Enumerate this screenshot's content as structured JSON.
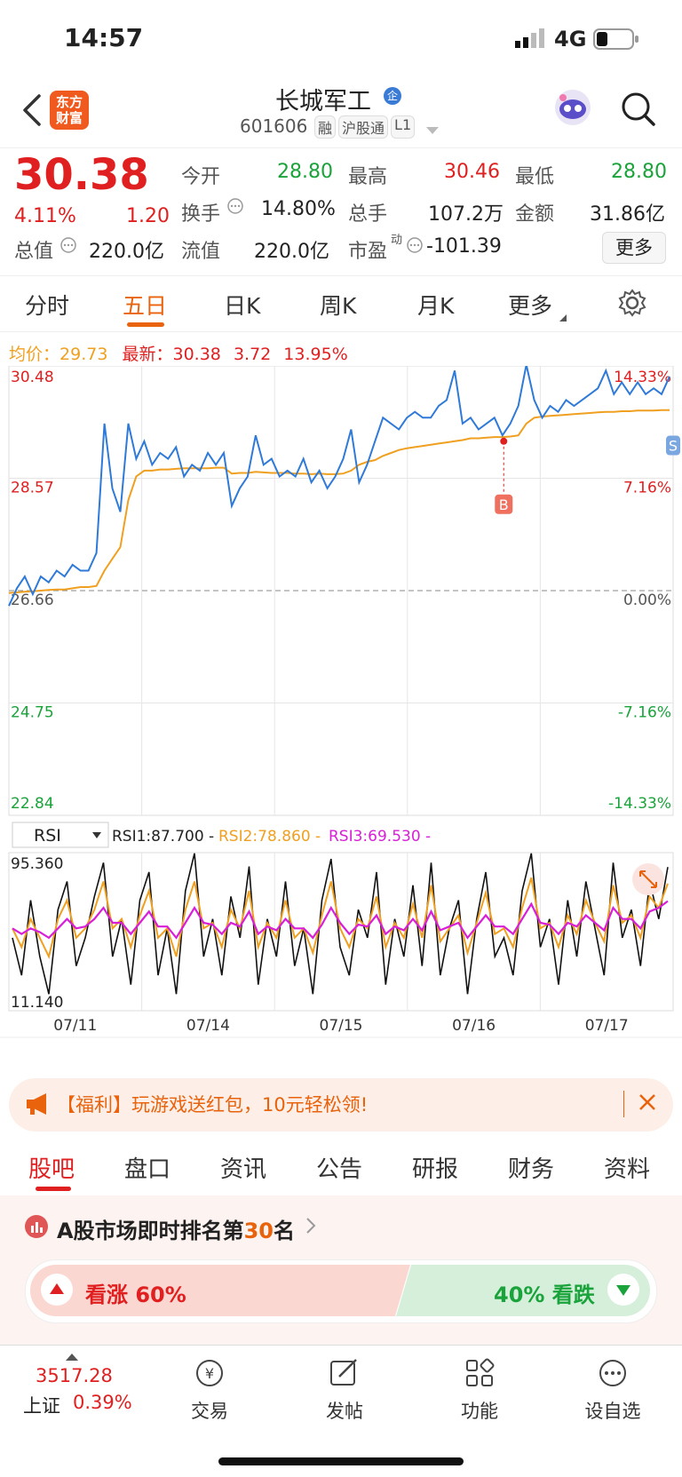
{
  "status": {
    "time": "14:57",
    "network": "4G"
  },
  "nav": {
    "back_icon": "chevron-left-icon",
    "logo_text": "东方\n财富",
    "title": "长城军工",
    "badge": "企",
    "code": "601606",
    "tags": [
      "融",
      "沪股通",
      "L1"
    ]
  },
  "quote": {
    "price": "30.38",
    "change_pct": "4.11%",
    "change": "1.20",
    "open_label": "今开",
    "open": "28.80",
    "high_label": "最高",
    "high": "30.46",
    "low_label": "最低",
    "low": "28.80",
    "turnover_label": "换手",
    "turnover": "14.80%",
    "volume_label": "总手",
    "volume": "107.2万",
    "amount_label": "金额",
    "amount": "31.86亿",
    "mktcap_label": "总值",
    "mktcap": "220.0亿",
    "float_label": "流值",
    "float": "220.0亿",
    "pe_label": "市盈",
    "pe_sup": "动",
    "pe": "-101.39",
    "more_label": "更多"
  },
  "tabs": [
    "分时",
    "五日",
    "日K",
    "周K",
    "月K",
    "更多"
  ],
  "tabs_active": "五日",
  "summary": {
    "avg_label": "均价：",
    "avg": "29.73",
    "latest_label": "最新：",
    "latest": "30.38",
    "chg": "3.72",
    "chg_pct": "13.95%"
  },
  "chart_data": {
    "type": "line",
    "left_axis": [
      "30.48",
      "28.57",
      "26.66",
      "24.75",
      "22.84"
    ],
    "right_axis": [
      "14.33%",
      "7.16%",
      "0.00%",
      "-7.16%",
      "-14.33%"
    ],
    "dates": [
      "07/11",
      "07/14",
      "07/15",
      "07/16",
      "07/17"
    ],
    "ylim": [
      22.84,
      30.48
    ],
    "base": 26.66,
    "price_series": [
      26.4,
      26.7,
      26.9,
      26.6,
      26.9,
      26.8,
      27.0,
      26.9,
      27.1,
      27.0,
      27.0,
      27.3,
      29.5,
      28.4,
      28.0,
      29.5,
      28.9,
      29.2,
      28.8,
      29.0,
      28.9,
      29.1,
      28.6,
      28.8,
      28.7,
      29.0,
      28.8,
      29.0,
      28.1,
      28.4,
      28.6,
      29.3,
      28.8,
      28.9,
      28.6,
      28.7,
      28.6,
      28.9,
      28.5,
      28.7,
      28.4,
      28.6,
      28.9,
      29.4,
      28.5,
      28.8,
      29.2,
      29.6,
      29.5,
      29.4,
      29.6,
      29.7,
      29.6,
      29.6,
      29.8,
      29.9,
      30.4,
      29.5,
      29.6,
      29.4,
      29.5,
      29.6,
      29.3,
      29.5,
      29.8,
      30.5,
      29.9,
      29.6,
      29.8,
      29.7,
      29.9,
      29.8,
      29.9,
      30.0,
      30.1,
      30.4,
      30.0,
      30.2,
      30.0,
      30.2,
      30.0,
      30.1,
      30.0,
      30.3
    ],
    "avg_series": [
      26.62,
      26.63,
      26.64,
      26.65,
      26.66,
      26.67,
      26.68,
      26.68,
      26.7,
      26.72,
      26.72,
      26.74,
      27.0,
      27.2,
      27.4,
      28.2,
      28.6,
      28.7,
      28.7,
      28.72,
      28.72,
      28.73,
      28.74,
      28.74,
      28.74,
      28.74,
      28.75,
      28.75,
      28.65,
      28.66,
      28.66,
      28.68,
      28.67,
      28.66,
      28.66,
      28.66,
      28.65,
      28.65,
      28.64,
      28.65,
      28.64,
      28.64,
      28.65,
      28.7,
      28.8,
      28.85,
      28.88,
      28.95,
      29.0,
      29.05,
      29.08,
      29.1,
      29.12,
      29.14,
      29.16,
      29.18,
      29.2,
      29.22,
      29.25,
      29.25,
      29.26,
      29.27,
      29.27,
      29.28,
      29.3,
      29.5,
      29.6,
      29.62,
      29.63,
      29.64,
      29.65,
      29.66,
      29.67,
      29.68,
      29.69,
      29.7,
      29.7,
      29.71,
      29.71,
      29.72,
      29.72,
      29.72,
      29.73,
      29.73
    ],
    "markers": [
      {
        "label": "B",
        "value": 29.2
      },
      {
        "label": "S",
        "value": 30.2
      }
    ],
    "legend_position": "top-left"
  },
  "rsi": {
    "selector": "RSI",
    "rsi1_label": "RSI1:87.700 -",
    "rsi2_label": "RSI2:78.860 -",
    "rsi3_label": "RSI3:69.530 -",
    "top_label": "95.360",
    "bottom_label": "11.140",
    "ylim": [
      11.14,
      95.36
    ],
    "rsi1": [
      50,
      30,
      70,
      40,
      20,
      65,
      80,
      35,
      50,
      72,
      90,
      40,
      60,
      25,
      70,
      85,
      30,
      55,
      20,
      75,
      95,
      40,
      60,
      30,
      72,
      50,
      88,
      25,
      60,
      40,
      80,
      35,
      55,
      20,
      70,
      92,
      45,
      30,
      65,
      50,
      85,
      25,
      60,
      40,
      78,
      35,
      90,
      30,
      55,
      70,
      20,
      60,
      85,
      40,
      50,
      30,
      75,
      95,
      45,
      60,
      25,
      70,
      40,
      80,
      55,
      30,
      90,
      50,
      65,
      35,
      80,
      60,
      87.7
    ],
    "rsi2": [
      55,
      45,
      60,
      50,
      40,
      60,
      70,
      50,
      55,
      65,
      80,
      55,
      60,
      45,
      62,
      75,
      50,
      55,
      40,
      65,
      80,
      55,
      58,
      45,
      65,
      55,
      75,
      45,
      58,
      50,
      70,
      50,
      55,
      42,
      62,
      80,
      55,
      45,
      60,
      55,
      72,
      45,
      58,
      50,
      68,
      50,
      78,
      48,
      55,
      62,
      42,
      58,
      74,
      52,
      55,
      45,
      66,
      82,
      55,
      58,
      45,
      62,
      52,
      70,
      58,
      48,
      78,
      58,
      62,
      50,
      72,
      66,
      78.86
    ],
    "rsi3": [
      55,
      52,
      55,
      53,
      50,
      55,
      60,
      55,
      56,
      60,
      66,
      58,
      58,
      52,
      58,
      64,
      56,
      56,
      50,
      58,
      66,
      58,
      57,
      52,
      58,
      56,
      64,
      52,
      56,
      54,
      60,
      55,
      55,
      50,
      57,
      66,
      58,
      52,
      57,
      56,
      62,
      52,
      56,
      54,
      60,
      54,
      64,
      54,
      56,
      58,
      50,
      56,
      62,
      56,
      56,
      52,
      60,
      68,
      58,
      57,
      52,
      58,
      56,
      62,
      58,
      54,
      66,
      60,
      60,
      55,
      64,
      66,
      69.53
    ]
  },
  "banner": {
    "icon": "megaphone-icon",
    "text": "【福利】玩游戏送红包，10元轻松领!"
  },
  "subtabs": [
    "股吧",
    "盘口",
    "资讯",
    "公告",
    "研报",
    "财务",
    "资料"
  ],
  "subtabs_active": "股吧",
  "rank": {
    "prefix": "A股市场即时排名第",
    "num": "30",
    "suffix": "名",
    "up_label": "看涨 60%",
    "down_label": "40% 看跌"
  },
  "bottom": {
    "index_value": "3517.28",
    "index_name": "上证",
    "index_pct": "0.39%",
    "items": [
      {
        "label": "交易",
        "icon": "trade-icon"
      },
      {
        "label": "发帖",
        "icon": "edit-icon"
      },
      {
        "label": "功能",
        "icon": "grid-icon"
      },
      {
        "label": "设自选",
        "icon": "more-icon"
      }
    ]
  },
  "colors": {
    "accent": "#e8630c",
    "up": "#e02020",
    "down": "#1aa33a",
    "price_line": "#2f7ad8",
    "avg_line": "#f0a020",
    "rsi1": "#111111",
    "rsi2": "#f0a020",
    "rsi3": "#d81fd8"
  }
}
